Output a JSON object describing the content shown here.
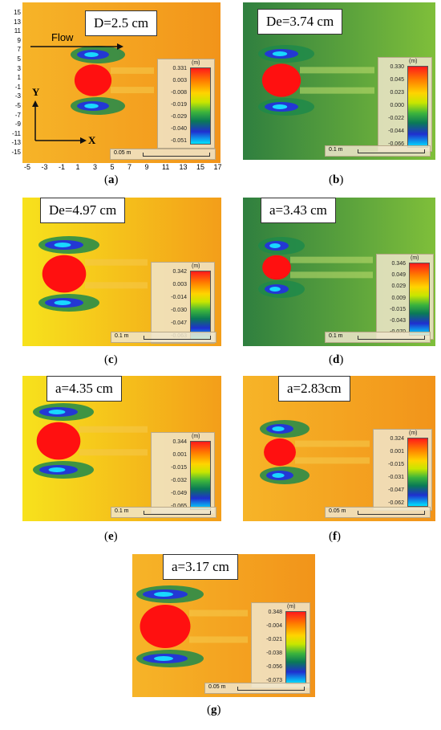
{
  "colors": {
    "orange": "#f5a623",
    "yellow": "#f3d21e",
    "green": "#4d9a4a",
    "red": "#ff1414",
    "blue": "#2a39d8"
  },
  "panels": [
    {
      "id": "a",
      "title": "D=2.5 cm",
      "caption": "(a)",
      "caption_letter": "a",
      "legend_unit": "(m)",
      "legend_ticks": [
        "0.331",
        "0.003",
        "-0.008",
        "-0.019",
        "-0.029",
        "-0.040",
        "-0.051"
      ],
      "scale": "0.05 m"
    },
    {
      "id": "b",
      "title": "De=3.74 cm",
      "caption": "(b)",
      "caption_letter": "b",
      "legend_unit": "(m)",
      "legend_ticks": [
        "0.330",
        "0.045",
        "0.023",
        "0.000",
        "-0.022",
        "-0.044",
        "-0.066"
      ],
      "scale": "0.1 m"
    },
    {
      "id": "c",
      "title": "De=4.97 cm",
      "caption": "(c)",
      "caption_letter": "c",
      "legend_unit": "(m)",
      "legend_ticks": [
        "0.342",
        "0.003",
        "-0.014",
        "-0.030",
        "-0.047",
        "-0.063"
      ],
      "scale": "0.1 m"
    },
    {
      "id": "d",
      "title": "a=3.43 cm",
      "caption": "(d)",
      "caption_letter": "d",
      "legend_unit": "(m)",
      "legend_ticks": [
        "0.346",
        "0.049",
        "0.029",
        "0.009",
        "-0.015",
        "-0.043",
        "-0.070"
      ],
      "scale": "0.1 m"
    },
    {
      "id": "e",
      "title": "a=4.35 cm",
      "caption": "(e)",
      "caption_letter": "e",
      "legend_unit": "(m)",
      "legend_ticks": [
        "0.344",
        "0.001",
        "-0.015",
        "-0.032",
        "-0.049",
        "-0.065"
      ],
      "scale": "0.1 m"
    },
    {
      "id": "f",
      "title": "a=2.83cm",
      "caption": "(f)",
      "caption_letter": "f",
      "legend_unit": "(m)",
      "legend_ticks": [
        "0.324",
        "0.001",
        "-0.015",
        "-0.031",
        "-0.047",
        "-0.062"
      ],
      "scale": "0.05 m"
    },
    {
      "id": "g",
      "title": "a=3.17 cm",
      "caption": "(g)",
      "caption_letter": "g",
      "legend_unit": "(m)",
      "legend_ticks": [
        "0.348",
        "-0.004",
        "-0.021",
        "-0.038",
        "-0.056",
        "-0.073"
      ],
      "scale": "0.05 m"
    }
  ],
  "panel_a_axes": {
    "flow_label": "Flow",
    "x_letter": "X",
    "y_letter": "Y",
    "y_ticks": [
      "15",
      "13",
      "11",
      "9",
      "7",
      "5",
      "3",
      "1",
      "-1",
      "-3",
      "-5",
      "-7",
      "-9",
      "-11",
      "-13",
      "-15"
    ],
    "x_ticks": [
      "-5",
      "-3",
      "-1",
      "1",
      "3",
      "5",
      "7",
      "9",
      "11",
      "13",
      "15",
      "17"
    ]
  }
}
